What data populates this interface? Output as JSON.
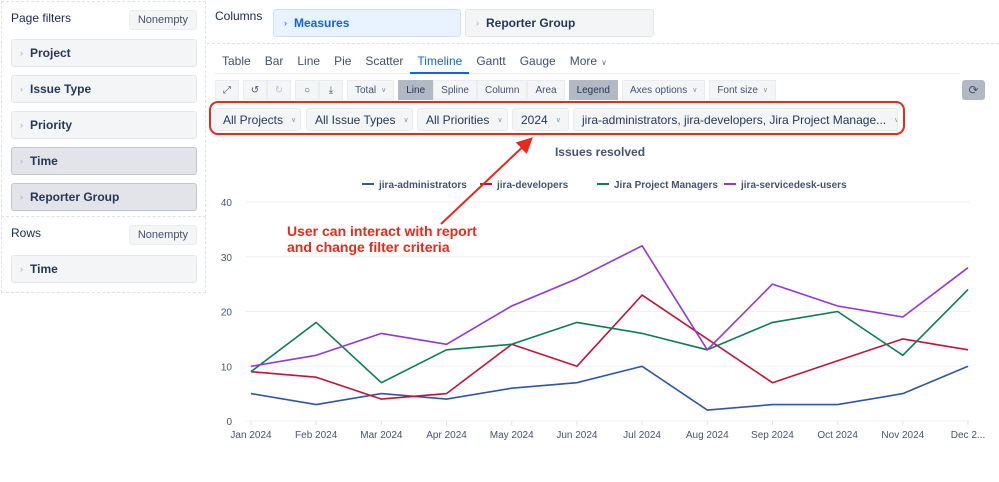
{
  "left_panel": {
    "page_filters": {
      "title": "Page filters",
      "nonempty_label": "Nonempty",
      "items": [
        {
          "label": "Project",
          "selected": false
        },
        {
          "label": "Issue Type",
          "selected": false
        },
        {
          "label": "Priority",
          "selected": false
        },
        {
          "label": "Time",
          "selected": true
        },
        {
          "label": "Reporter Group",
          "selected": true
        }
      ]
    },
    "rows": {
      "title": "Rows",
      "nonempty_label": "Nonempty",
      "items": [
        {
          "label": "Time"
        }
      ]
    }
  },
  "columns": {
    "label": "Columns",
    "items": [
      {
        "label": "Measures"
      },
      {
        "label": "Reporter Group"
      }
    ]
  },
  "tabs": [
    {
      "label": "Table"
    },
    {
      "label": "Bar"
    },
    {
      "label": "Line"
    },
    {
      "label": "Pie"
    },
    {
      "label": "Scatter"
    },
    {
      "label": "Timeline",
      "active": true
    },
    {
      "label": "Gantt"
    },
    {
      "label": "Gauge"
    },
    {
      "label": "More"
    }
  ],
  "toolbar": {
    "total_label": "Total",
    "chart_types": [
      "Line",
      "Spline",
      "Column",
      "Area"
    ],
    "selected_chart_type": "Line",
    "legend_label": "Legend",
    "axes_options_label": "Axes options",
    "font_size_label": "Font size"
  },
  "filters": {
    "project": "All Projects",
    "issue_type": "All Issue Types",
    "priority": "All Priorities",
    "time": "2024",
    "reporter_group": "jira-administrators, jira-developers, Jira Project Manage..."
  },
  "annotation": {
    "line1": "User can interact with report",
    "line2": "and change filter criteria",
    "color": "#e8291c"
  },
  "chart_data": {
    "type": "line",
    "title": "Issues resolved",
    "xlabel": "",
    "ylabel": "",
    "categories": [
      "Jan 2024",
      "Feb 2024",
      "Mar 2024",
      "Apr 2024",
      "May 2024",
      "Jun 2024",
      "Jul 2024",
      "Aug 2024",
      "Sep 2024",
      "Oct 2024",
      "Nov 2024",
      "Dec 2..."
    ],
    "yticks": [
      0,
      10,
      20,
      30,
      40
    ],
    "ylim": [
      0,
      40
    ],
    "grid": true,
    "legend_position": "top",
    "series": [
      {
        "name": "jira-administrators",
        "color": "#2e57a4",
        "values": [
          5,
          3,
          5,
          4,
          6,
          7,
          10,
          2,
          3,
          3,
          5,
          10
        ]
      },
      {
        "name": "jira-developers",
        "color": "#c0143c",
        "values": [
          9,
          8,
          4,
          5,
          14,
          10,
          23,
          15,
          7,
          11,
          15,
          13
        ]
      },
      {
        "name": "Jira Project Managers",
        "color": "#0a7d55",
        "values": [
          9,
          18,
          7,
          13,
          14,
          18,
          16,
          13,
          18,
          20,
          12,
          24
        ]
      },
      {
        "name": "jira-servicedesk-users",
        "color": "#9437d6",
        "values": [
          10,
          12,
          16,
          14,
          21,
          26,
          32,
          13,
          25,
          21,
          19,
          28
        ]
      }
    ]
  }
}
